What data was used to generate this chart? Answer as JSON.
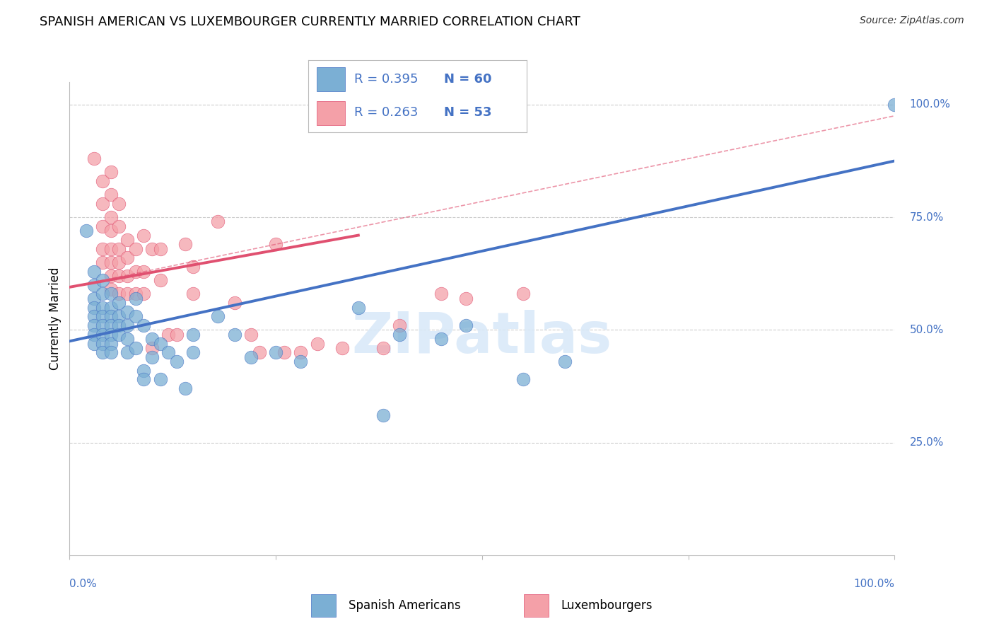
{
  "title": "SPANISH AMERICAN VS LUXEMBOURGER CURRENTLY MARRIED CORRELATION CHART",
  "source": "Source: ZipAtlas.com",
  "ylabel": "Currently Married",
  "watermark": "ZIPatlas",
  "legend": {
    "blue_R": "R = 0.395",
    "blue_N": "N = 60",
    "pink_R": "R = 0.263",
    "pink_N": "N = 53"
  },
  "blue_scatter": [
    [
      0.02,
      0.72
    ],
    [
      0.03,
      0.63
    ],
    [
      0.03,
      0.6
    ],
    [
      0.03,
      0.57
    ],
    [
      0.03,
      0.55
    ],
    [
      0.03,
      0.53
    ],
    [
      0.03,
      0.51
    ],
    [
      0.03,
      0.49
    ],
    [
      0.03,
      0.47
    ],
    [
      0.04,
      0.61
    ],
    [
      0.04,
      0.58
    ],
    [
      0.04,
      0.55
    ],
    [
      0.04,
      0.53
    ],
    [
      0.04,
      0.51
    ],
    [
      0.04,
      0.49
    ],
    [
      0.04,
      0.47
    ],
    [
      0.04,
      0.45
    ],
    [
      0.05,
      0.58
    ],
    [
      0.05,
      0.55
    ],
    [
      0.05,
      0.53
    ],
    [
      0.05,
      0.51
    ],
    [
      0.05,
      0.49
    ],
    [
      0.05,
      0.47
    ],
    [
      0.05,
      0.45
    ],
    [
      0.06,
      0.56
    ],
    [
      0.06,
      0.53
    ],
    [
      0.06,
      0.51
    ],
    [
      0.06,
      0.49
    ],
    [
      0.07,
      0.54
    ],
    [
      0.07,
      0.51
    ],
    [
      0.07,
      0.48
    ],
    [
      0.07,
      0.45
    ],
    [
      0.08,
      0.57
    ],
    [
      0.08,
      0.53
    ],
    [
      0.08,
      0.46
    ],
    [
      0.09,
      0.51
    ],
    [
      0.09,
      0.41
    ],
    [
      0.09,
      0.39
    ],
    [
      0.1,
      0.48
    ],
    [
      0.1,
      0.44
    ],
    [
      0.11,
      0.47
    ],
    [
      0.11,
      0.39
    ],
    [
      0.12,
      0.45
    ],
    [
      0.13,
      0.43
    ],
    [
      0.14,
      0.37
    ],
    [
      0.15,
      0.49
    ],
    [
      0.15,
      0.45
    ],
    [
      0.18,
      0.53
    ],
    [
      0.2,
      0.49
    ],
    [
      0.22,
      0.44
    ],
    [
      0.25,
      0.45
    ],
    [
      0.28,
      0.43
    ],
    [
      0.35,
      0.55
    ],
    [
      0.38,
      0.31
    ],
    [
      0.4,
      0.49
    ],
    [
      0.45,
      0.48
    ],
    [
      0.48,
      0.51
    ],
    [
      0.55,
      0.39
    ],
    [
      0.6,
      0.43
    ],
    [
      1.0,
      1.0
    ]
  ],
  "pink_scatter": [
    [
      0.03,
      0.88
    ],
    [
      0.04,
      0.83
    ],
    [
      0.04,
      0.78
    ],
    [
      0.04,
      0.73
    ],
    [
      0.04,
      0.68
    ],
    [
      0.04,
      0.65
    ],
    [
      0.05,
      0.85
    ],
    [
      0.05,
      0.8
    ],
    [
      0.05,
      0.75
    ],
    [
      0.05,
      0.72
    ],
    [
      0.05,
      0.68
    ],
    [
      0.05,
      0.65
    ],
    [
      0.05,
      0.62
    ],
    [
      0.05,
      0.59
    ],
    [
      0.06,
      0.78
    ],
    [
      0.06,
      0.73
    ],
    [
      0.06,
      0.68
    ],
    [
      0.06,
      0.65
    ],
    [
      0.06,
      0.62
    ],
    [
      0.06,
      0.58
    ],
    [
      0.07,
      0.7
    ],
    [
      0.07,
      0.66
    ],
    [
      0.07,
      0.62
    ],
    [
      0.07,
      0.58
    ],
    [
      0.08,
      0.68
    ],
    [
      0.08,
      0.63
    ],
    [
      0.08,
      0.58
    ],
    [
      0.09,
      0.71
    ],
    [
      0.09,
      0.63
    ],
    [
      0.09,
      0.58
    ],
    [
      0.1,
      0.68
    ],
    [
      0.1,
      0.46
    ],
    [
      0.11,
      0.68
    ],
    [
      0.11,
      0.61
    ],
    [
      0.12,
      0.49
    ],
    [
      0.13,
      0.49
    ],
    [
      0.14,
      0.69
    ],
    [
      0.15,
      0.64
    ],
    [
      0.15,
      0.58
    ],
    [
      0.18,
      0.74
    ],
    [
      0.2,
      0.56
    ],
    [
      0.22,
      0.49
    ],
    [
      0.23,
      0.45
    ],
    [
      0.25,
      0.69
    ],
    [
      0.26,
      0.45
    ],
    [
      0.28,
      0.45
    ],
    [
      0.3,
      0.47
    ],
    [
      0.33,
      0.46
    ],
    [
      0.38,
      0.46
    ],
    [
      0.4,
      0.51
    ],
    [
      0.45,
      0.58
    ],
    [
      0.48,
      0.57
    ],
    [
      0.55,
      0.58
    ]
  ],
  "blue_line": {
    "x0": 0.0,
    "y0": 0.475,
    "x1": 1.0,
    "y1": 0.875
  },
  "pink_line_solid": {
    "x0": 0.0,
    "y0": 0.595,
    "x1": 0.35,
    "y1": 0.71
  },
  "pink_line_dashed": {
    "x0": 0.0,
    "y0": 0.595,
    "x1": 1.0,
    "y1": 0.975
  },
  "blue_color": "#7BAFD4",
  "pink_color": "#F4A0A8",
  "blue_line_color": "#4472C4",
  "pink_line_color": "#E05070",
  "background_color": "#FFFFFF",
  "grid_color": "#CCCCCC",
  "right_axis_color": "#4472C4",
  "xlim": [
    0.0,
    1.0
  ],
  "ylim": [
    0.0,
    1.05
  ],
  "ytick_positions": [
    0.25,
    0.5,
    0.75,
    1.0
  ],
  "ytick_labels": [
    "25.0%",
    "50.0%",
    "75.0%",
    "100.0%"
  ]
}
